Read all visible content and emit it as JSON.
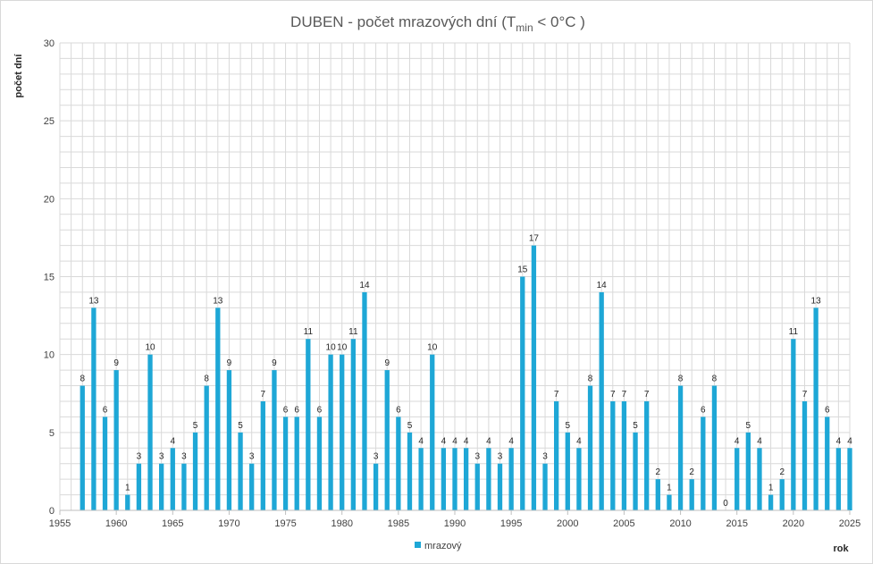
{
  "chart_data": {
    "type": "bar",
    "title": {
      "main": "DUBEN - počet mrazových dní (T",
      "sub": "min",
      "tail": " < 0°C )"
    },
    "ylabel": "počet dní",
    "xlabel": "rok",
    "xlim": [
      1955,
      2025
    ],
    "ylim": [
      0,
      30
    ],
    "x_ticks": [
      1955,
      1960,
      1965,
      1970,
      1975,
      1980,
      1985,
      1990,
      1995,
      2000,
      2005,
      2010,
      2015,
      2020,
      2025
    ],
    "y_ticks": [
      0,
      5,
      10,
      15,
      20,
      25,
      30
    ],
    "grid": true,
    "legend_position": "bottom",
    "colors": {
      "bar": "#1ea7d6",
      "grid": "#d9d9d9"
    },
    "series": [
      {
        "name": "mrazový",
        "x": [
          1957,
          1958,
          1959,
          1960,
          1961,
          1962,
          1963,
          1964,
          1965,
          1966,
          1967,
          1968,
          1969,
          1970,
          1971,
          1972,
          1973,
          1974,
          1975,
          1976,
          1977,
          1978,
          1979,
          1980,
          1981,
          1982,
          1983,
          1984,
          1985,
          1986,
          1987,
          1988,
          1989,
          1990,
          1991,
          1992,
          1993,
          1994,
          1995,
          1996,
          1997,
          1998,
          1999,
          2000,
          2001,
          2002,
          2003,
          2004,
          2005,
          2006,
          2007,
          2008,
          2009,
          2010,
          2011,
          2012,
          2013,
          2014,
          2015,
          2016,
          2017,
          2018,
          2019,
          2020,
          2021,
          2022,
          2023,
          2024,
          2025
        ],
        "values": [
          8,
          13,
          6,
          9,
          1,
          3,
          10,
          3,
          4,
          3,
          5,
          8,
          13,
          9,
          5,
          3,
          7,
          9,
          6,
          6,
          11,
          6,
          10,
          10,
          11,
          14,
          3,
          9,
          6,
          5,
          4,
          10,
          4,
          4,
          4,
          3,
          4,
          3,
          4,
          15,
          17,
          3,
          7,
          5,
          4,
          8,
          14,
          7,
          7,
          5,
          7,
          2,
          1,
          8,
          2,
          6,
          8,
          0,
          4,
          5,
          4,
          1,
          2,
          11,
          7,
          13,
          6,
          4,
          4
        ]
      }
    ]
  }
}
